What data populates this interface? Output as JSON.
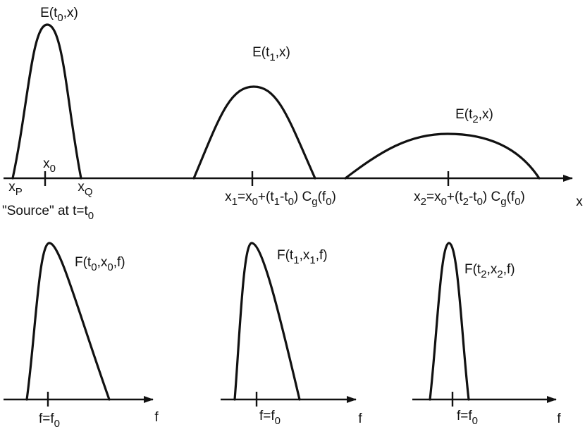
{
  "labels": [
    [
      {
        "text": "E(t"
      },
      {
        "sub": "0"
      },
      {
        "text": ",x)"
      }
    ],
    [
      {
        "text": "E(t"
      },
      {
        "sub": "1"
      },
      {
        "text": ",x)"
      }
    ],
    [
      {
        "text": "E(t"
      },
      {
        "sub": "2"
      },
      {
        "text": ",x)"
      }
    ],
    [
      {
        "text": "x"
      },
      {
        "sub": "0"
      }
    ],
    [
      {
        "text": "x"
      },
      {
        "sub": "P"
      }
    ],
    [
      {
        "text": "x"
      },
      {
        "sub": "Q"
      }
    ],
    [
      {
        "text": "x"
      },
      {
        "sub": "1"
      },
      {
        "text": "=x"
      },
      {
        "sub": "0"
      },
      {
        "text": "+(t"
      },
      {
        "sub": "1"
      },
      {
        "text": "-t"
      },
      {
        "sub": "0"
      },
      {
        "text": ") C"
      },
      {
        "sub": "g"
      },
      {
        "text": "(f"
      },
      {
        "sub": "0"
      },
      {
        "text": ")"
      }
    ],
    [
      {
        "text": "x"
      },
      {
        "sub": "2"
      },
      {
        "text": "=x"
      },
      {
        "sub": "0"
      },
      {
        "text": "+(t"
      },
      {
        "sub": "2"
      },
      {
        "text": "-t"
      },
      {
        "sub": "0"
      },
      {
        "text": ") C"
      },
      {
        "sub": "g"
      },
      {
        "text": "(f"
      },
      {
        "sub": "0"
      },
      {
        "text": ")"
      }
    ],
    [
      {
        "text": "x"
      }
    ],
    [
      {
        "text": "\"Source\" at t=t"
      },
      {
        "sub": "0"
      }
    ],
    [
      {
        "text": "F(t"
      },
      {
        "sub": "0"
      },
      {
        "text": ",x"
      },
      {
        "sub": "0"
      },
      {
        "text": ",f)"
      }
    ],
    [
      {
        "text": "F(t"
      },
      {
        "sub": "1"
      },
      {
        "text": ",x"
      },
      {
        "sub": "1"
      },
      {
        "text": ",f)"
      }
    ],
    [
      {
        "text": "F(t"
      },
      {
        "sub": "2"
      },
      {
        "text": ",x"
      },
      {
        "sub": "2"
      },
      {
        "text": ",f)"
      }
    ],
    [
      {
        "text": "f=f"
      },
      {
        "sub": "0"
      }
    ],
    [
      {
        "text": "f=f"
      },
      {
        "sub": "0"
      }
    ],
    [
      {
        "text": "f=f"
      },
      {
        "sub": "0"
      }
    ],
    [
      {
        "text": "f"
      }
    ],
    [
      {
        "text": "f"
      }
    ],
    [
      {
        "text": "f"
      }
    ]
  ]
}
